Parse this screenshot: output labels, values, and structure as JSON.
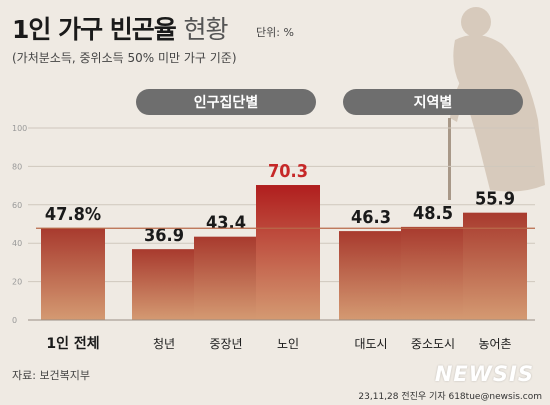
{
  "header": {
    "title_bold": "1인 가구 빈곤율",
    "title_light": "현황",
    "unit": "단위: %",
    "subtitle": "(가처분소득, 중위소득 50% 미만 가구 기준)"
  },
  "footer": {
    "source": "자료: 보건복지부",
    "credit": "23,11,28 전진우 기자 618tue@newsis.com",
    "watermark": "NEWSIS"
  },
  "colors": {
    "bar_top": "#a83a2e",
    "bar_bottom": "#d49a72",
    "highlight_top": "#b01e1e",
    "highlight_label": "#c62828",
    "group_pill": "#6e6e6e",
    "reference_line": "#b86a4a"
  },
  "chart_data": {
    "type": "bar",
    "ylim": [
      0,
      100
    ],
    "yticks": [
      0,
      20,
      40,
      60,
      80,
      100
    ],
    "grid": true,
    "groups": [
      {
        "label": "인구집단별",
        "categories": [
          "청년",
          "중장년",
          "노인"
        ]
      },
      {
        "label": "지역별",
        "categories": [
          "대도시",
          "중소도시",
          "농어촌"
        ]
      }
    ],
    "categories": [
      "1인 전체",
      "청년",
      "중장년",
      "노인",
      "대도시",
      "중소도시",
      "농어촌"
    ],
    "values": [
      47.8,
      36.9,
      43.4,
      70.3,
      46.3,
      48.5,
      55.9
    ],
    "value_labels": [
      "47.8%",
      "36.9",
      "43.4",
      "70.3",
      "46.3",
      "48.5",
      "55.9"
    ],
    "highlight": "노인",
    "reference_line_value": 47.8
  }
}
